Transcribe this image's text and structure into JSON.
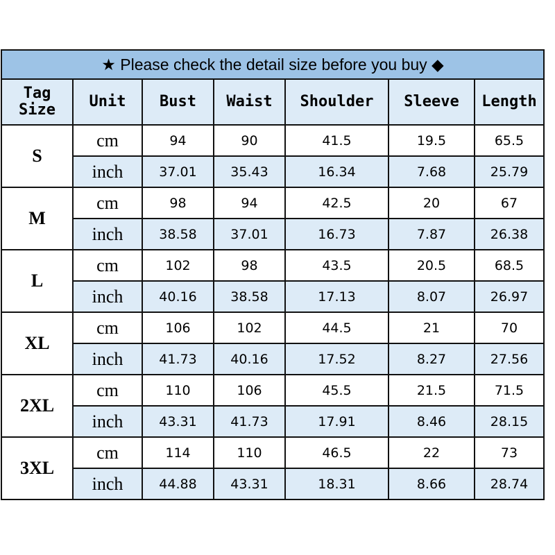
{
  "title": "★ Please check the detail size before you buy ◆",
  "colors": {
    "title_bg": "#9dc3e6",
    "header_bg": "#ddebf7",
    "inch_row_bg": "#ddebf7",
    "border": "#111111"
  },
  "headers": [
    "Tag Size",
    "Unit",
    "Bust",
    "Waist",
    "Shoulder",
    "Sleeve",
    "Length"
  ],
  "rows": [
    {
      "size": "S",
      "cm": [
        "94",
        "90",
        "41.5",
        "19.5",
        "65.5"
      ],
      "inch": [
        "37.01",
        "35.43",
        "16.34",
        "7.68",
        "25.79"
      ]
    },
    {
      "size": "M",
      "cm": [
        "98",
        "94",
        "42.5",
        "20",
        "67"
      ],
      "inch": [
        "38.58",
        "37.01",
        "16.73",
        "7.87",
        "26.38"
      ]
    },
    {
      "size": "L",
      "cm": [
        "102",
        "98",
        "43.5",
        "20.5",
        "68.5"
      ],
      "inch": [
        "40.16",
        "38.58",
        "17.13",
        "8.07",
        "26.97"
      ]
    },
    {
      "size": "XL",
      "cm": [
        "106",
        "102",
        "44.5",
        "21",
        "70"
      ],
      "inch": [
        "41.73",
        "40.16",
        "17.52",
        "8.27",
        "27.56"
      ]
    },
    {
      "size": "2XL",
      "cm": [
        "110",
        "106",
        "45.5",
        "21.5",
        "71.5"
      ],
      "inch": [
        "43.31",
        "41.73",
        "17.91",
        "8.46",
        "28.15"
      ]
    },
    {
      "size": "3XL",
      "cm": [
        "114",
        "110",
        "46.5",
        "22",
        "73"
      ],
      "inch": [
        "44.88",
        "43.31",
        "18.31",
        "8.66",
        "28.74"
      ]
    }
  ],
  "units": {
    "cm": "cm",
    "inch": "inch"
  }
}
